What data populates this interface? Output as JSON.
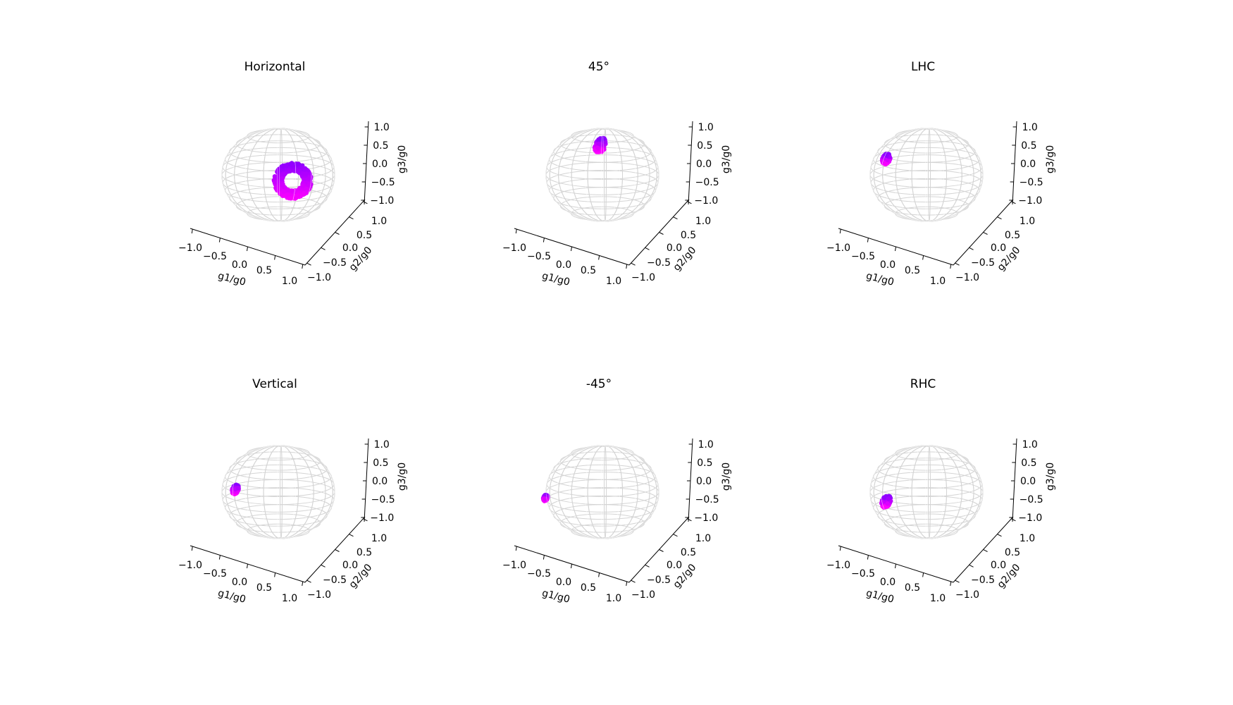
{
  "chart_data": [
    {
      "type": "scatter",
      "title": "Horizontal",
      "xlabel": "g1/g0",
      "ylabel": "g2/g0",
      "zlabel": "g3/g0",
      "xlim": [
        -1.0,
        1.0
      ],
      "ylim": [
        -1.0,
        1.0
      ],
      "zlim": [
        -1.0,
        1.0
      ],
      "xticks": [
        "−1.0",
        "−0.5",
        "0.0",
        "0.5",
        "1.0"
      ],
      "yticks": [
        "−1.0",
        "−0.5",
        "0.0",
        "0.5",
        "1.0"
      ],
      "zticks": [
        "−1.0",
        "−0.5",
        "0.0",
        "0.5",
        "1.0"
      ],
      "sphere": "unit sphere wireframe",
      "points_color_range": [
        "#8a00ff",
        "#ff00ff"
      ],
      "cluster": {
        "shape": "ring",
        "center": [
          0.45,
          -0.65,
          -0.05
        ],
        "spread": 0.32
      }
    },
    {
      "type": "scatter",
      "title": "45°",
      "xlabel": "g1/g0",
      "ylabel": "g2/g0",
      "zlabel": "g3/g0",
      "xlim": [
        -1.0,
        1.0
      ],
      "ylim": [
        -1.0,
        1.0
      ],
      "zlim": [
        -1.0,
        1.0
      ],
      "xticks": [
        "−1.0",
        "−0.5",
        "0.0",
        "0.5",
        "1.0"
      ],
      "yticks": [
        "−1.0",
        "−0.5",
        "0.0",
        "0.5",
        "1.0"
      ],
      "zticks": [
        "−1.0",
        "−0.5",
        "0.0",
        "0.5",
        "1.0"
      ],
      "sphere": "unit sphere wireframe",
      "points_color_range": [
        "#8a00ff",
        "#ff00ff"
      ],
      "cluster": {
        "shape": "blob",
        "center": [
          -0.25,
          0.72,
          0.55
        ],
        "spread": 0.1
      }
    },
    {
      "type": "scatter",
      "title": "LHC",
      "xlabel": "g1/g0",
      "ylabel": "g2/g0",
      "zlabel": "g3/g0",
      "xlim": [
        -1.0,
        1.0
      ],
      "ylim": [
        -1.0,
        1.0
      ],
      "zlim": [
        -1.0,
        1.0
      ],
      "xticks": [
        "−1.0",
        "−0.5",
        "0.0",
        "0.5",
        "1.0"
      ],
      "yticks": [
        "−1.0",
        "−0.5",
        "0.0",
        "0.5",
        "1.0"
      ],
      "zticks": [
        "−1.0",
        "−0.5",
        "0.0",
        "0.5",
        "1.0"
      ],
      "sphere": "unit sphere wireframe",
      "points_color_range": [
        "#8a00ff",
        "#ff00ff"
      ],
      "cluster": {
        "shape": "blob",
        "center": [
          -0.82,
          0.35,
          0.3
        ],
        "spread": 0.07
      }
    },
    {
      "type": "scatter",
      "title": "Vertical",
      "xlabel": "g1/g0",
      "ylabel": "g2/g0",
      "zlabel": "g3/g0",
      "xlim": [
        -1.0,
        1.0
      ],
      "ylim": [
        -1.0,
        1.0
      ],
      "zlim": [
        -1.0,
        1.0
      ],
      "xticks": [
        "−1.0",
        "−0.5",
        "0.0",
        "0.5",
        "1.0"
      ],
      "yticks": [
        "−1.0",
        "−0.5",
        "0.0",
        "0.5",
        "1.0"
      ],
      "zticks": [
        "−1.0",
        "−0.5",
        "0.0",
        "0.5",
        "1.0"
      ],
      "sphere": "unit sphere wireframe",
      "points_color_range": [
        "#8a00ff",
        "#ff00ff"
      ],
      "cluster": {
        "shape": "blob",
        "center": [
          -0.85,
          0.3,
          0.02
        ],
        "spread": 0.06
      }
    },
    {
      "type": "scatter",
      "title": "-45°",
      "xlabel": "g1/g0",
      "ylabel": "g2/g0",
      "zlabel": "g3/g0",
      "xlim": [
        -1.0,
        1.0
      ],
      "ylim": [
        -1.0,
        1.0
      ],
      "zlim": [
        -1.0,
        1.0
      ],
      "xticks": [
        "−1.0",
        "−0.5",
        "0.0",
        "0.5",
        "1.0"
      ],
      "yticks": [
        "−1.0",
        "−0.5",
        "0.0",
        "0.5",
        "1.0"
      ],
      "zticks": [
        "−1.0",
        "−0.5",
        "0.0",
        "0.5",
        "1.0"
      ],
      "sphere": "unit sphere wireframe",
      "points_color_range": [
        "#8a00ff",
        "#ff00ff"
      ],
      "cluster": {
        "shape": "blob",
        "center": [
          -0.95,
          -0.2,
          -0.1
        ],
        "spread": 0.04
      }
    },
    {
      "type": "scatter",
      "title": "RHC",
      "xlabel": "g1/g0",
      "ylabel": "g2/g0",
      "zlabel": "g3/g0",
      "xlim": [
        -1.0,
        1.0
      ],
      "ylim": [
        -1.0,
        1.0
      ],
      "zlim": [
        -1.0,
        1.0
      ],
      "xticks": [
        "−1.0",
        "−0.5",
        "0.0",
        "0.5",
        "1.0"
      ],
      "yticks": [
        "−1.0",
        "−0.5",
        "0.0",
        "0.5",
        "1.0"
      ],
      "zticks": [
        "−1.0",
        "−0.5",
        "0.0",
        "0.5",
        "1.0"
      ],
      "sphere": "unit sphere wireframe",
      "points_color_range": [
        "#8a00ff",
        "#ff00ff"
      ],
      "cluster": {
        "shape": "blob",
        "center": [
          -0.7,
          -0.05,
          -0.2
        ],
        "spread": 0.08
      }
    }
  ]
}
